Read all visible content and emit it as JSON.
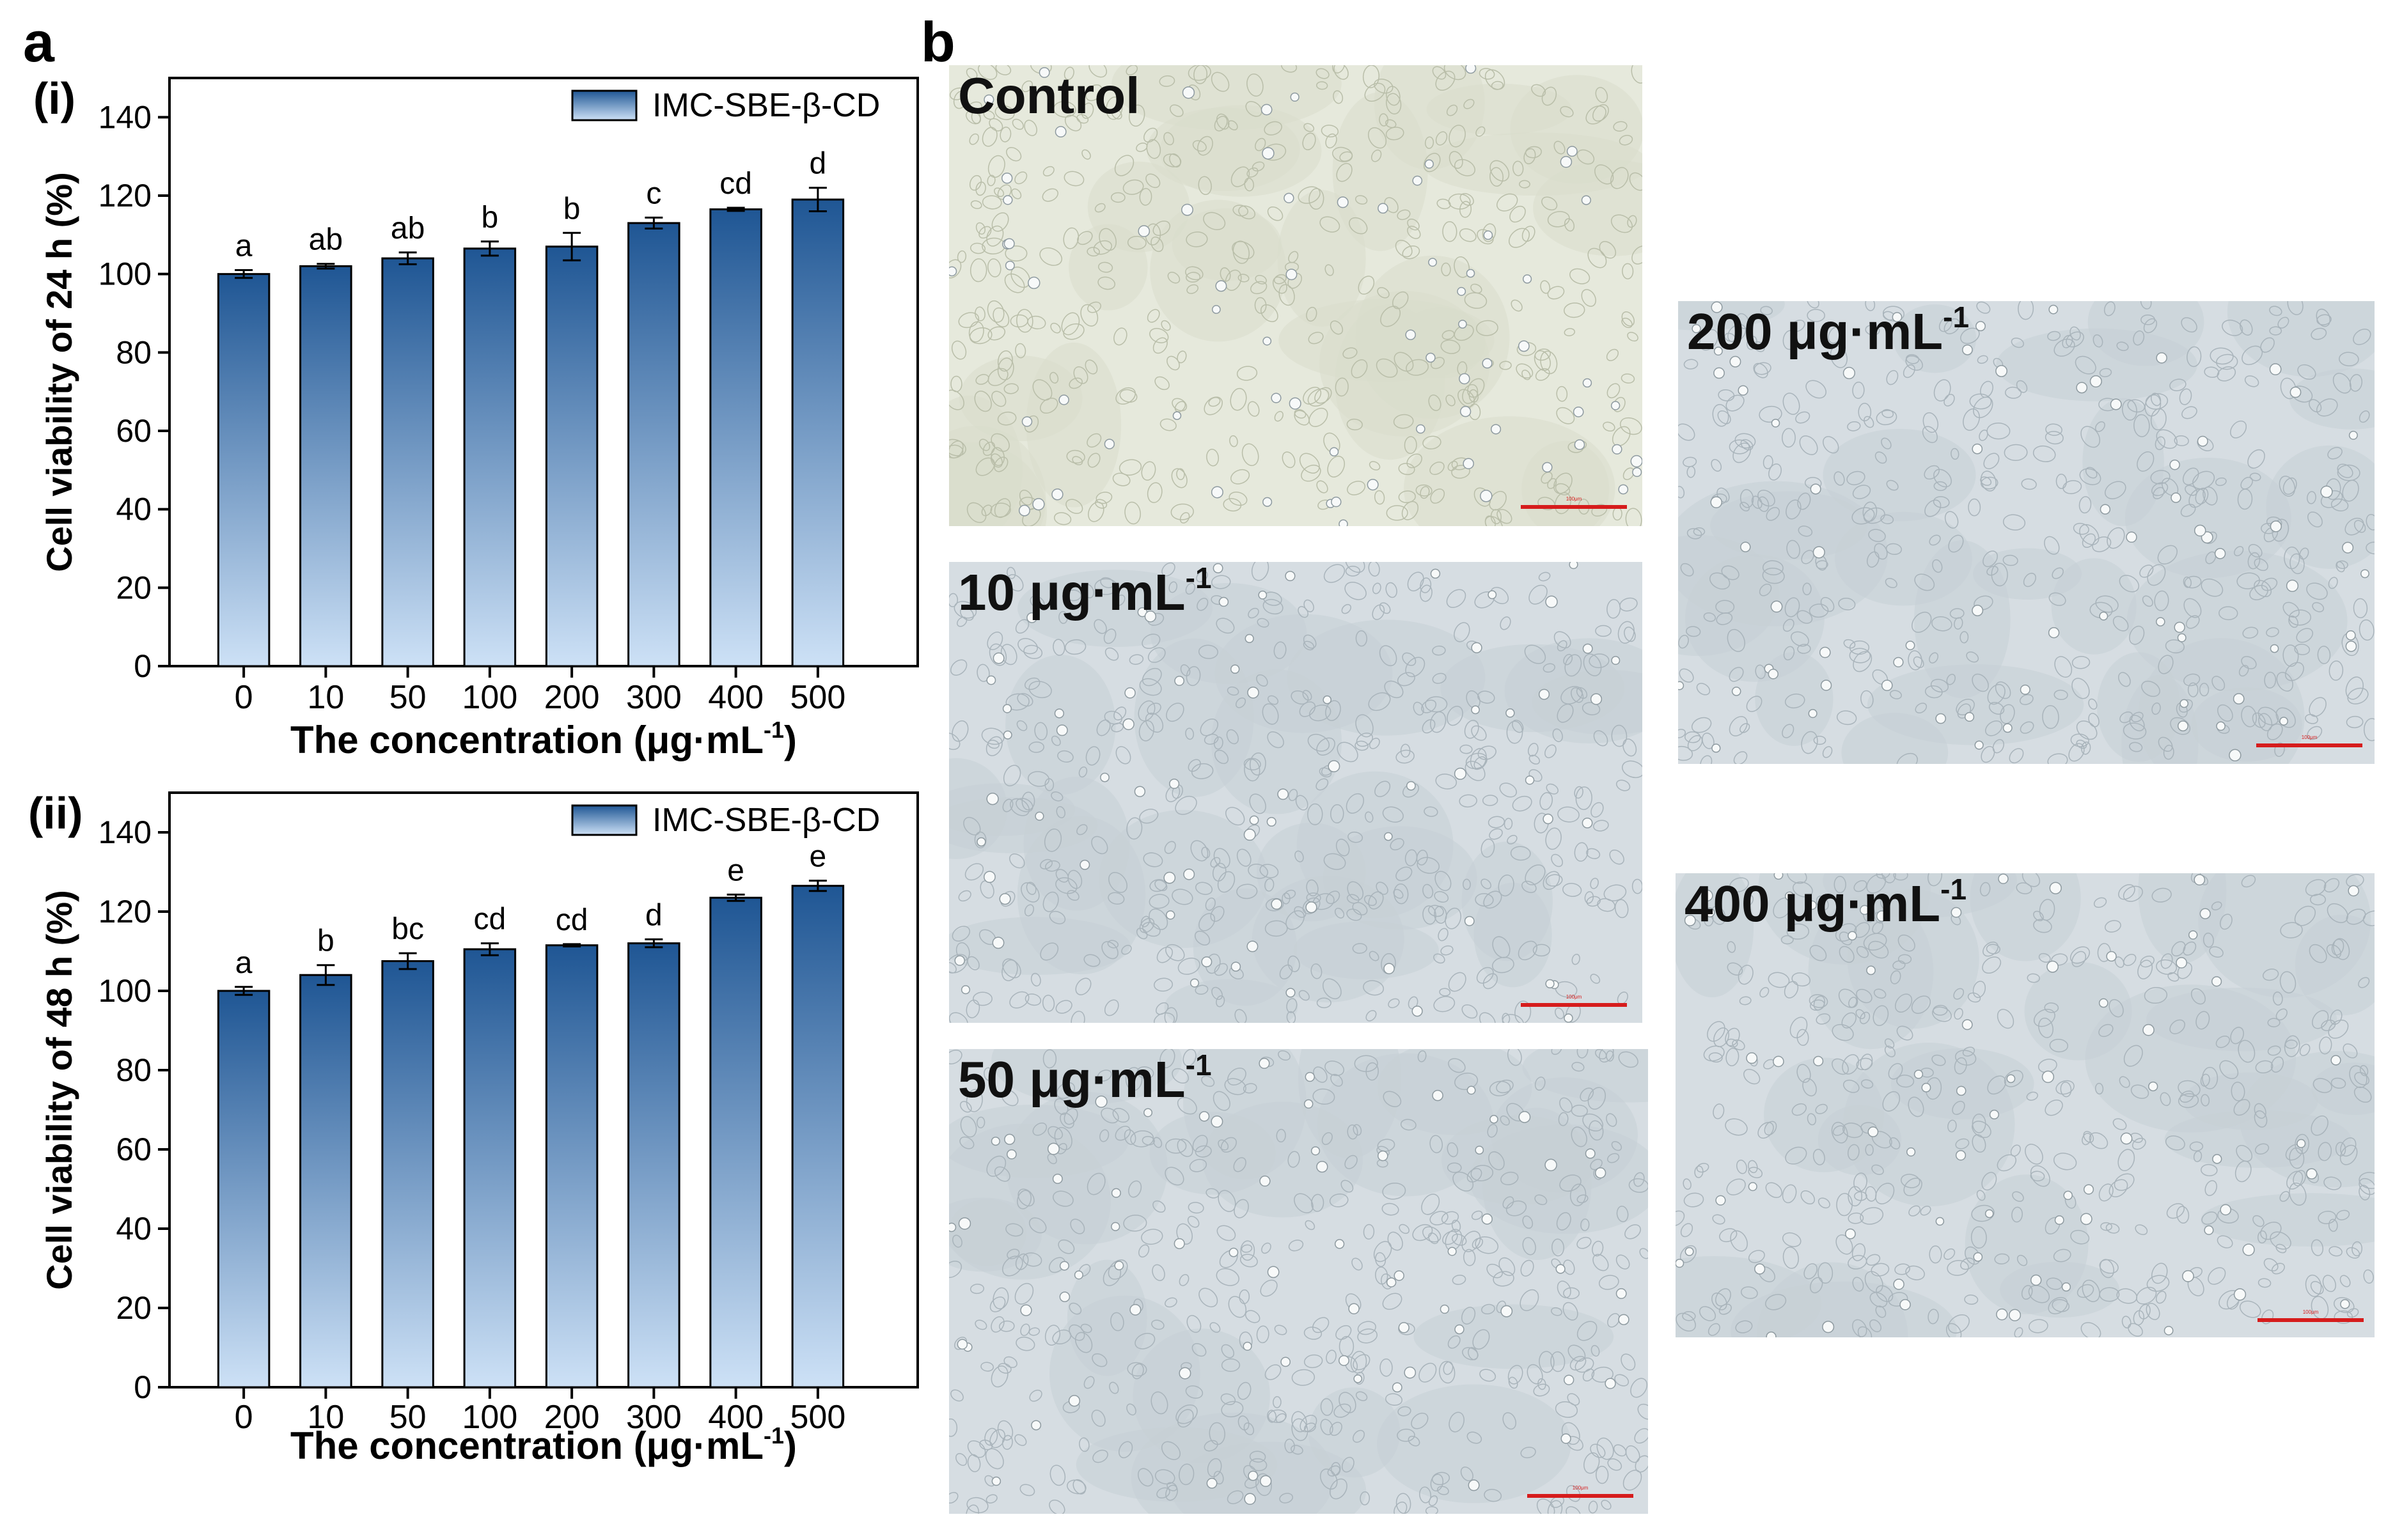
{
  "panels": {
    "a": "a",
    "b": "b"
  },
  "colors": {
    "bar_top": "#1f5694",
    "bar_bottom": "#cde1f6",
    "micro_control": "#e6e9dc",
    "micro_other": "#d6dde2",
    "scale": "#d61c1c"
  },
  "chart_data": [
    {
      "type": "bar",
      "tag": "(i)",
      "categories": [
        "0",
        "10",
        "50",
        "100",
        "200",
        "300",
        "400",
        "500"
      ],
      "series": [
        {
          "name": "IMC-SBE-β-CD",
          "values": [
            100,
            102,
            104,
            106.5,
            107,
            113,
            116.5,
            119
          ],
          "errors": [
            1,
            0.6,
            1.5,
            1.8,
            3.5,
            1.4,
            0.4,
            3
          ]
        }
      ],
      "sig_letters": [
        "a",
        "ab",
        "ab",
        "b",
        "b",
        "c",
        "cd",
        "d"
      ],
      "ylabel": "Cell viability of 24 h (%)",
      "xlabel_main": "The concentration (μg·mL",
      "xlabel_sup": "-1",
      "xlabel_close": ")",
      "ylim": [
        0,
        150
      ],
      "yticks": [
        0,
        20,
        40,
        60,
        80,
        100,
        120,
        140
      ],
      "legend_position": "top-right",
      "grid": false
    },
    {
      "type": "bar",
      "tag": "(ii)",
      "categories": [
        "0",
        "10",
        "50",
        "100",
        "200",
        "300",
        "400",
        "500"
      ],
      "series": [
        {
          "name": "IMC-SBE-β-CD",
          "values": [
            100,
            104,
            107.5,
            110.5,
            111.5,
            112,
            123.5,
            126.5
          ],
          "errors": [
            1,
            2.5,
            2,
            1.5,
            0.3,
            1,
            0.8,
            1.3
          ]
        }
      ],
      "sig_letters": [
        "a",
        "b",
        "bc",
        "cd",
        "cd",
        "d",
        "e",
        "e"
      ],
      "ylabel": "Cell viability of 48 h (%)",
      "xlabel_main": "The concentration (μg·mL",
      "xlabel_sup": "-1",
      "xlabel_close": ")",
      "ylim": [
        0,
        150
      ],
      "yticks": [
        0,
        20,
        40,
        60,
        80,
        100,
        120,
        140
      ],
      "legend_position": "top-right",
      "grid": false
    }
  ],
  "micrographs": [
    {
      "id": "control",
      "label": "Control",
      "sup": "",
      "scale_text": "100μm"
    },
    {
      "id": "c10",
      "label": "10 μg·mL",
      "sup": "-1",
      "scale_text": "100μm"
    },
    {
      "id": "c50",
      "label": "50 μg·mL",
      "sup": "-1",
      "scale_text": "100μm"
    },
    {
      "id": "c200",
      "label": "200 μg·mL",
      "sup": "-1",
      "scale_text": "100μm"
    },
    {
      "id": "c400",
      "label": "400 μg·mL",
      "sup": "-1",
      "scale_text": "100μm"
    }
  ]
}
